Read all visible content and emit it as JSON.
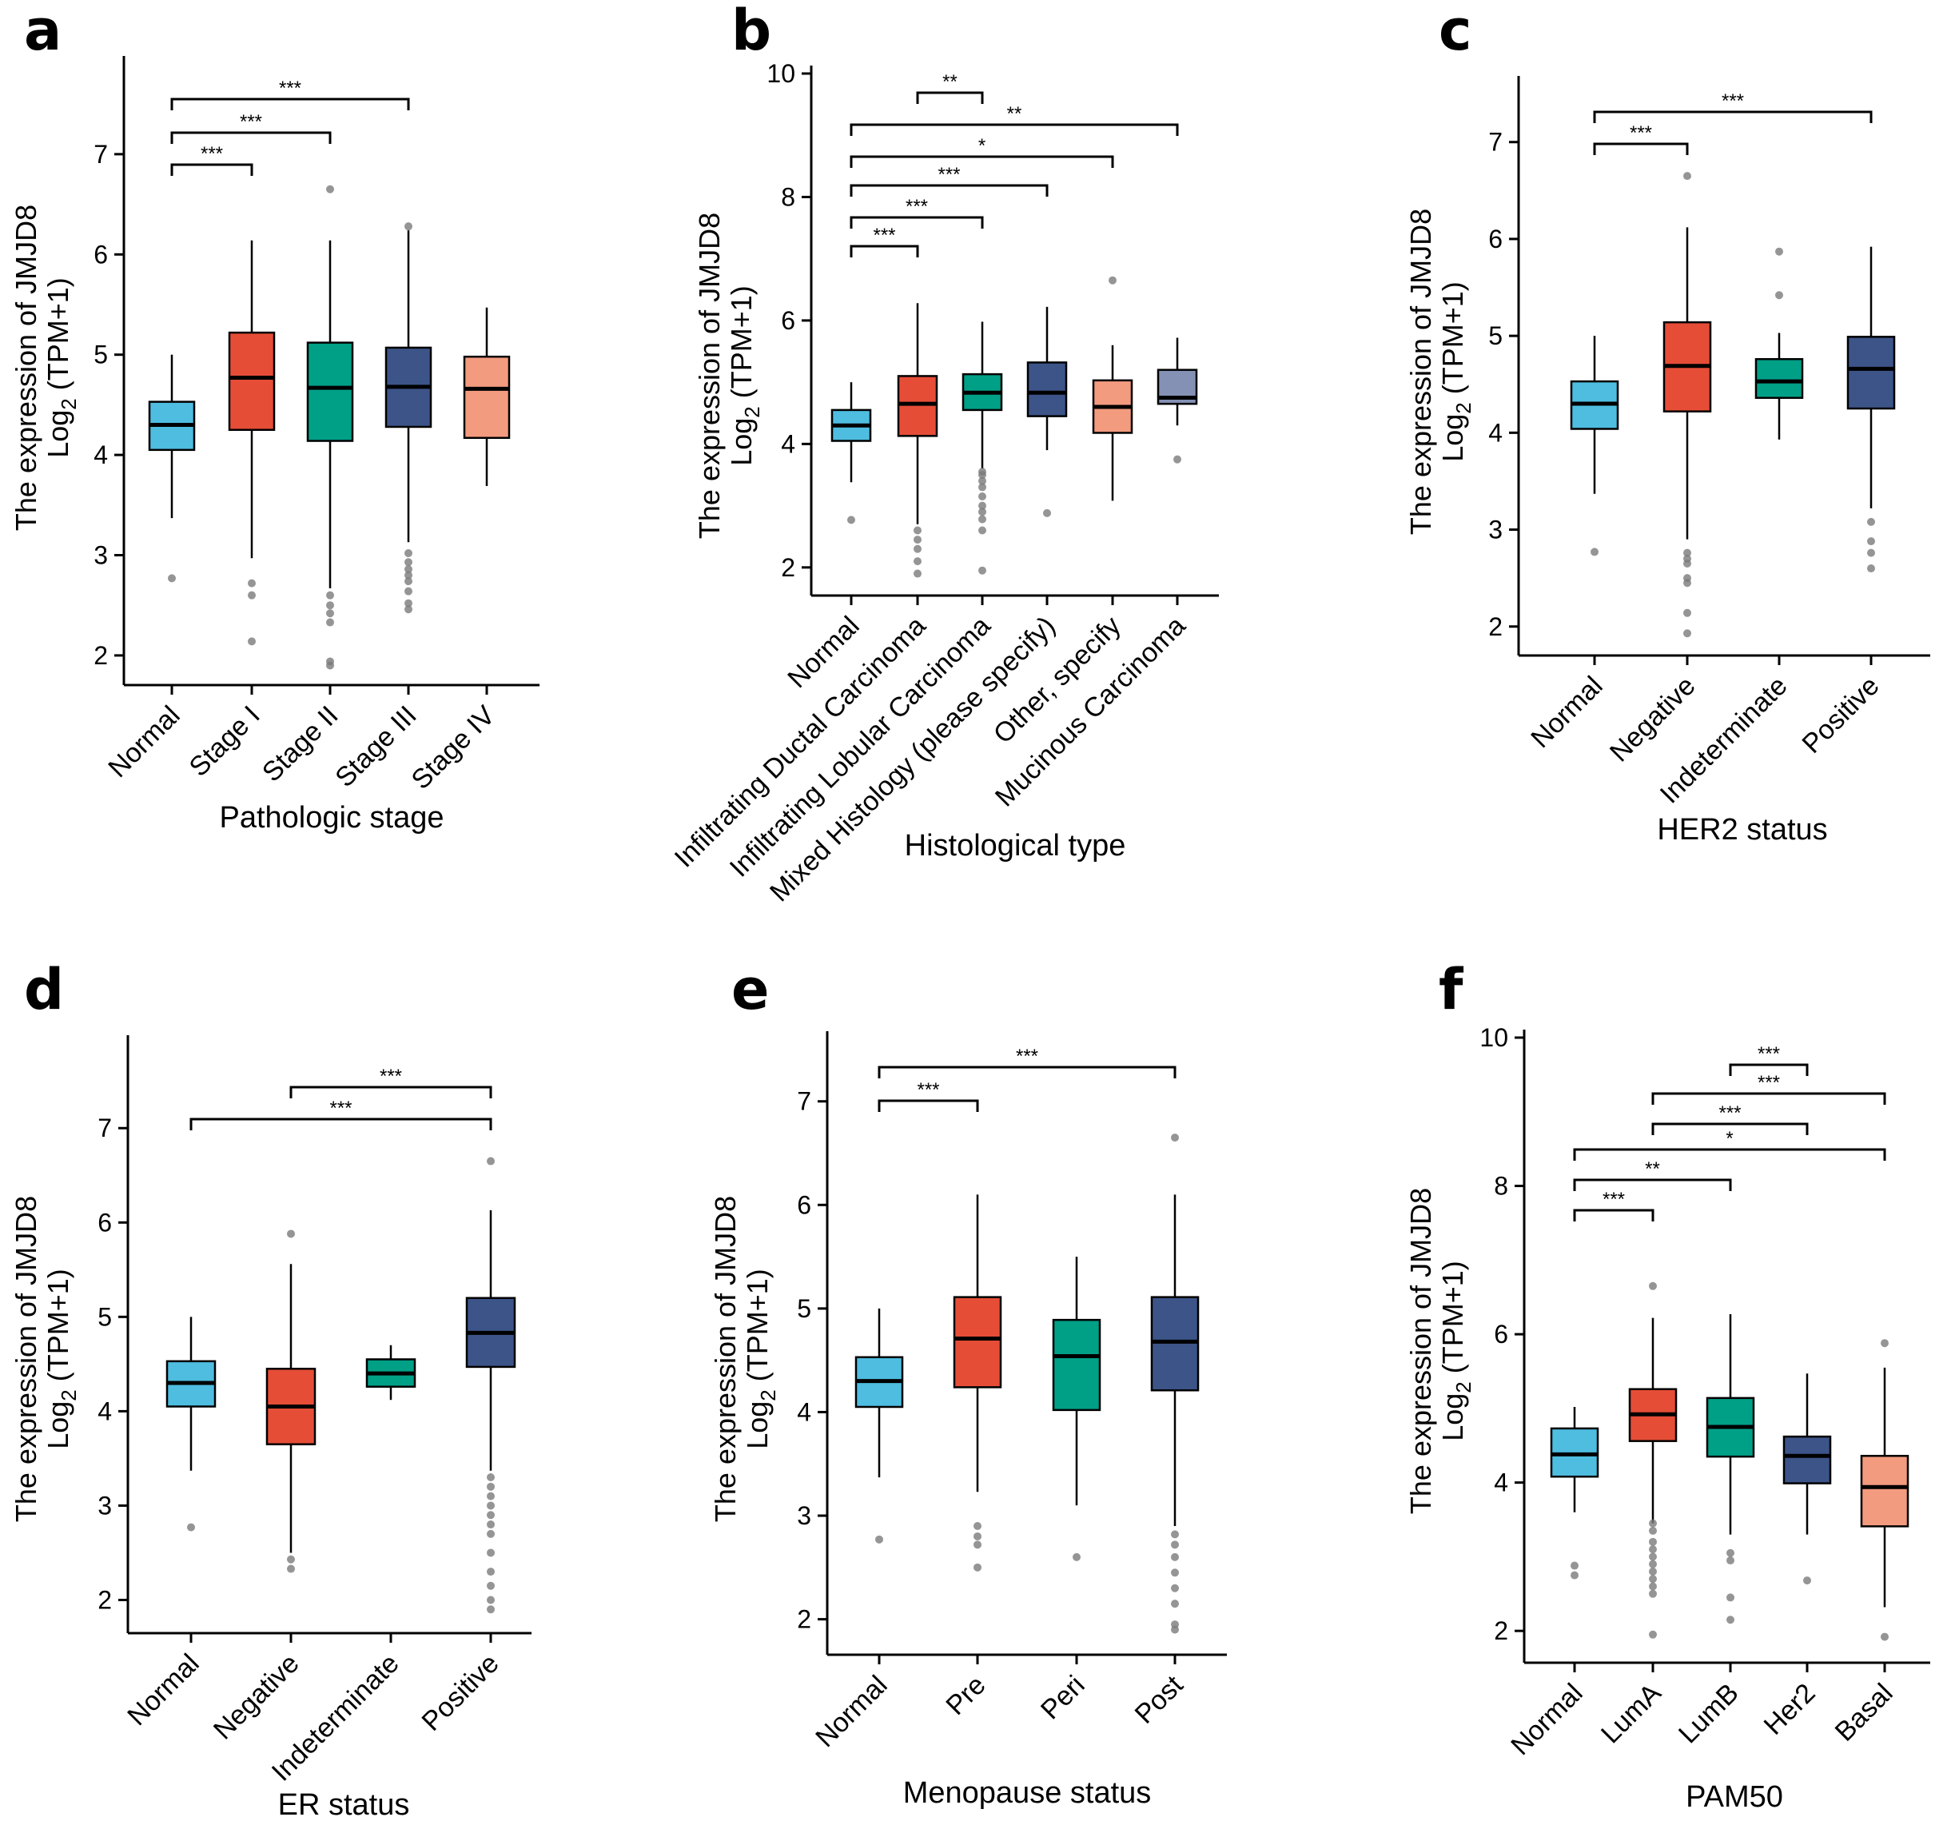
{
  "chart_data": [
    {
      "label": "a",
      "type": "box",
      "title": "",
      "xlabel": "Pathologic stage",
      "ylabel": "The expression of JMJD8",
      "ylabel_unit": "Log2 (TPM+1)",
      "ylim": [
        1.8,
        7.9
      ],
      "yticks": [
        2,
        3,
        4,
        5,
        6,
        7
      ],
      "categories": [
        "Normal",
        "Stage I",
        "Stage II",
        "Stage III",
        "Stage IV"
      ],
      "colors": [
        "#4ebde0",
        "#e54d37",
        "#00a087",
        "#3c5488",
        "#f39b7f"
      ],
      "boxes": [
        {
          "whislo": 3.37,
          "q1": 4.05,
          "med": 4.3,
          "q3": 4.53,
          "whishi": 5.0,
          "fliers": [
            2.77
          ]
        },
        {
          "whislo": 2.97,
          "q1": 4.25,
          "med": 4.77,
          "q3": 5.22,
          "whishi": 6.14,
          "fliers": [
            2.72,
            2.6,
            2.14
          ]
        },
        {
          "whislo": 2.67,
          "q1": 4.14,
          "med": 4.67,
          "q3": 5.12,
          "whishi": 6.14,
          "fliers": [
            6.65,
            2.6,
            2.5,
            2.42,
            2.33,
            1.94,
            1.9
          ]
        },
        {
          "whislo": 3.13,
          "q1": 4.28,
          "med": 4.68,
          "q3": 5.07,
          "whishi": 6.24,
          "fliers": [
            6.28,
            3.02,
            2.93,
            2.86,
            2.8,
            2.74,
            2.64,
            2.52,
            2.46
          ]
        },
        {
          "whislo": 3.69,
          "q1": 4.17,
          "med": 4.66,
          "q3": 4.98,
          "whishi": 5.47,
          "fliers": []
        }
      ],
      "significance": [
        {
          "from": 0,
          "to": 1,
          "level": 0,
          "text": "***"
        },
        {
          "from": 0,
          "to": 2,
          "level": 1,
          "text": "***"
        },
        {
          "from": 0,
          "to": 3,
          "level": 2,
          "text": "***"
        }
      ]
    },
    {
      "label": "b",
      "type": "box",
      "title": "",
      "xlabel": "Histological type",
      "ylabel": "The expression of JMJD8",
      "ylabel_unit": "Log2 (TPM+1)",
      "ylim": [
        1.7,
        10
      ],
      "yticks": [
        2,
        4,
        6,
        8,
        10
      ],
      "categories": [
        "Normal",
        "Infiltrating Ductal Carcinoma",
        "Infiltrating Lobular Carcinoma",
        "Mixed Histology (please specify)",
        "Other, specify",
        "Mucinous Carcinoma"
      ],
      "colors": [
        "#4ebde0",
        "#e54d37",
        "#00a087",
        "#3c5488",
        "#f39b7f",
        "#8491b4"
      ],
      "boxes": [
        {
          "whislo": 3.38,
          "q1": 4.05,
          "med": 4.3,
          "q3": 4.55,
          "whishi": 5.0,
          "fliers": [
            2.77
          ]
        },
        {
          "whislo": 2.7,
          "q1": 4.13,
          "med": 4.65,
          "q3": 5.1,
          "whishi": 6.28,
          "fliers": [
            2.6,
            2.45,
            2.3,
            2.1,
            1.9
          ]
        },
        {
          "whislo": 3.6,
          "q1": 4.55,
          "med": 4.83,
          "q3": 5.13,
          "whishi": 5.98,
          "fliers": [
            3.55,
            3.5,
            3.4,
            3.3,
            3.15,
            3.0,
            2.9,
            2.78,
            2.6,
            1.95
          ]
        },
        {
          "whislo": 3.9,
          "q1": 4.45,
          "med": 4.83,
          "q3": 5.32,
          "whishi": 6.22,
          "fliers": [
            2.88
          ]
        },
        {
          "whislo": 3.08,
          "q1": 4.18,
          "med": 4.6,
          "q3": 5.03,
          "whishi": 5.6,
          "fliers": [
            6.65
          ]
        },
        {
          "whislo": 4.3,
          "q1": 4.65,
          "med": 4.75,
          "q3": 5.2,
          "whishi": 5.72,
          "fliers": [
            3.75
          ]
        }
      ],
      "significance": [
        {
          "from": 0,
          "to": 1,
          "level": 0,
          "text": "***"
        },
        {
          "from": 0,
          "to": 2,
          "level": 1,
          "text": "***"
        },
        {
          "from": 0,
          "to": 3,
          "level": 2,
          "text": "***"
        },
        {
          "from": 0,
          "to": 4,
          "level": 3,
          "text": "*"
        },
        {
          "from": 0,
          "to": 5,
          "level": 4,
          "text": "**"
        },
        {
          "from": 1,
          "to": 2,
          "level": 5,
          "text": "**"
        }
      ]
    },
    {
      "label": "c",
      "type": "box",
      "title": "",
      "xlabel": "HER2 status",
      "ylabel": "The expression of JMJD8",
      "ylabel_unit": "Log2 (TPM+1)",
      "ylim": [
        1.8,
        7.6
      ],
      "yticks": [
        2,
        3,
        4,
        5,
        6,
        7
      ],
      "categories": [
        "Normal",
        "Negative",
        "Indeterminate",
        "Positive"
      ],
      "colors": [
        "#4ebde0",
        "#e54d37",
        "#00a087",
        "#3c5488"
      ],
      "boxes": [
        {
          "whislo": 3.37,
          "q1": 4.04,
          "med": 4.3,
          "q3": 4.53,
          "whishi": 5.0,
          "fliers": [
            2.77
          ]
        },
        {
          "whislo": 2.9,
          "q1": 4.22,
          "med": 4.69,
          "q3": 5.14,
          "whishi": 6.12,
          "fliers": [
            6.65,
            2.76,
            2.7,
            2.65,
            2.5,
            2.45,
            2.14,
            1.93
          ]
        },
        {
          "whislo": 3.93,
          "q1": 4.36,
          "med": 4.53,
          "q3": 4.76,
          "whishi": 5.03,
          "fliers": [
            5.87,
            5.42
          ]
        },
        {
          "whislo": 3.22,
          "q1": 4.25,
          "med": 4.66,
          "q3": 4.99,
          "whishi": 5.92,
          "fliers": [
            3.08,
            2.88,
            2.76,
            2.6
          ]
        }
      ],
      "significance": [
        {
          "from": 0,
          "to": 1,
          "level": 0,
          "text": "***"
        },
        {
          "from": 0,
          "to": 3,
          "level": 1,
          "text": "***"
        }
      ]
    },
    {
      "label": "d",
      "type": "box",
      "title": "",
      "xlabel": "ER status",
      "ylabel": "The expression of JMJD8",
      "ylabel_unit": "Log2 (TPM+1)",
      "ylim": [
        1.75,
        7.9
      ],
      "yticks": [
        2,
        3,
        4,
        5,
        6,
        7
      ],
      "categories": [
        "Normal",
        "Negative",
        "Indeterminate",
        "Positive"
      ],
      "colors": [
        "#4ebde0",
        "#e54d37",
        "#00a087",
        "#3c5488"
      ],
      "boxes": [
        {
          "whislo": 3.37,
          "q1": 4.05,
          "med": 4.3,
          "q3": 4.53,
          "whishi": 5.0,
          "fliers": [
            2.77
          ]
        },
        {
          "whislo": 2.5,
          "q1": 3.65,
          "med": 4.05,
          "q3": 4.45,
          "whishi": 5.56,
          "fliers": [
            5.88,
            2.43,
            2.33
          ]
        },
        {
          "whislo": 4.12,
          "q1": 4.26,
          "med": 4.4,
          "q3": 4.55,
          "whishi": 4.7,
          "fliers": []
        },
        {
          "whislo": 3.37,
          "q1": 4.47,
          "med": 4.83,
          "q3": 5.2,
          "whishi": 6.13,
          "fliers": [
            6.65,
            3.3,
            3.2,
            3.1,
            3.0,
            2.9,
            2.8,
            2.7,
            2.5,
            2.3,
            2.15,
            2.0,
            1.9
          ]
        }
      ],
      "significance": [
        {
          "from": 0,
          "to": 3,
          "level": 0,
          "text": "***"
        },
        {
          "from": 1,
          "to": 3,
          "level": 1,
          "text": "***"
        }
      ]
    },
    {
      "label": "e",
      "type": "box",
      "title": "",
      "xlabel": "Menopause status",
      "ylabel": "The expression of JMJD8",
      "ylabel_unit": "Log2 (TPM+1)",
      "ylim": [
        1.75,
        7.6
      ],
      "yticks": [
        2,
        3,
        4,
        5,
        6,
        7
      ],
      "categories": [
        "Normal",
        "Pre",
        "Peri",
        "Post"
      ],
      "colors": [
        "#4ebde0",
        "#e54d37",
        "#00a087",
        "#3c5488"
      ],
      "boxes": [
        {
          "whislo": 3.37,
          "q1": 4.05,
          "med": 4.3,
          "q3": 4.53,
          "whishi": 5.0,
          "fliers": [
            2.77
          ]
        },
        {
          "whislo": 3.23,
          "q1": 4.24,
          "med": 4.71,
          "q3": 5.11,
          "whishi": 6.1,
          "fliers": [
            2.9,
            2.8,
            2.72,
            2.5
          ]
        },
        {
          "whislo": 3.1,
          "q1": 4.02,
          "med": 4.54,
          "q3": 4.89,
          "whishi": 5.5,
          "fliers": [
            2.6
          ]
        },
        {
          "whislo": 2.9,
          "q1": 4.21,
          "med": 4.68,
          "q3": 5.11,
          "whishi": 6.1,
          "fliers": [
            6.65,
            2.82,
            2.72,
            2.6,
            2.45,
            2.3,
            2.15,
            1.95,
            1.9
          ]
        }
      ],
      "significance": [
        {
          "from": 0,
          "to": 1,
          "level": 0,
          "text": "***"
        },
        {
          "from": 0,
          "to": 3,
          "level": 1,
          "text": "***"
        }
      ]
    },
    {
      "label": "f",
      "type": "box",
      "title": "",
      "xlabel": "PAM50",
      "ylabel": "The expression of JMJD8",
      "ylabel_unit": "Log2 (TPM+1)",
      "ylim": [
        1.7,
        10
      ],
      "yticks": [
        2,
        4,
        6,
        8,
        10
      ],
      "categories": [
        "Normal",
        "LumA",
        "LumB",
        "Her2",
        "Basal"
      ],
      "colors": [
        "#4ebde0",
        "#e54d37",
        "#00a087",
        "#3c5488",
        "#f39b7f"
      ],
      "boxes": [
        {
          "whislo": 3.6,
          "q1": 4.08,
          "med": 4.38,
          "q3": 4.73,
          "whishi": 5.02,
          "fliers": [
            2.88,
            2.75
          ]
        },
        {
          "whislo": 3.45,
          "q1": 4.56,
          "med": 4.92,
          "q3": 5.26,
          "whishi": 6.22,
          "fliers": [
            6.65,
            3.45,
            3.35,
            3.2,
            3.1,
            3.0,
            2.9,
            2.8,
            2.7,
            2.6,
            2.5,
            1.95
          ]
        },
        {
          "whislo": 3.3,
          "q1": 4.35,
          "med": 4.75,
          "q3": 5.14,
          "whishi": 6.27,
          "fliers": [
            3.05,
            2.95,
            2.45,
            2.15
          ]
        },
        {
          "whislo": 3.3,
          "q1": 3.99,
          "med": 4.36,
          "q3": 4.62,
          "whishi": 5.47,
          "fliers": [
            2.68
          ]
        },
        {
          "whislo": 2.32,
          "q1": 3.41,
          "med": 3.94,
          "q3": 4.36,
          "whishi": 5.55,
          "fliers": [
            5.88,
            1.92
          ]
        }
      ],
      "significance": [
        {
          "from": 0,
          "to": 1,
          "level": 0,
          "text": "***"
        },
        {
          "from": 0,
          "to": 2,
          "level": 1,
          "text": "**"
        },
        {
          "from": 0,
          "to": 4,
          "level": 2,
          "text": "*"
        },
        {
          "from": 1,
          "to": 3,
          "level": 3,
          "text": "***"
        },
        {
          "from": 1,
          "to": 4,
          "level": 4,
          "text": "***"
        },
        {
          "from": 2,
          "to": 3,
          "level": 5,
          "text": "***"
        }
      ]
    }
  ]
}
